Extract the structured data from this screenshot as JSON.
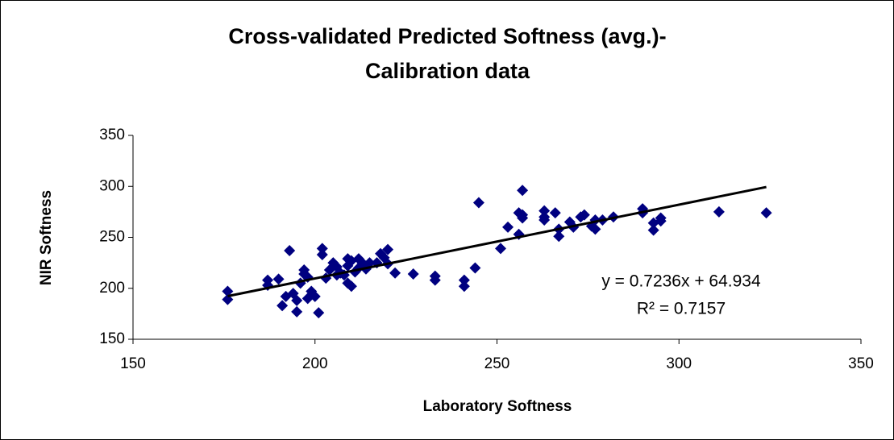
{
  "chart_data": {
    "type": "scatter",
    "title": [
      "Cross-validated Predicted Softness (avg.)-",
      "Calibration data"
    ],
    "x_label": "Laboratory Softness",
    "y_label": "NIR Softness",
    "xlim": [
      150,
      350
    ],
    "xticks": [
      150,
      200,
      250,
      300,
      350
    ],
    "ylim": [
      150,
      350
    ],
    "yticks": [
      150,
      200,
      250,
      300,
      350
    ],
    "grid": false,
    "series": [
      {
        "color": "#000080",
        "x": [
          176,
          176,
          187,
          187,
          190,
          191,
          192,
          193,
          194,
          195,
          195,
          196,
          197,
          197,
          198,
          198,
          199,
          200,
          201,
          202,
          202,
          203,
          204,
          205,
          206,
          206,
          207,
          208,
          209,
          209,
          209,
          210,
          210,
          211,
          212,
          212,
          213,
          214,
          215,
          217,
          218,
          219,
          220,
          220,
          222,
          227,
          233,
          233,
          241,
          241,
          244,
          245,
          251,
          253,
          256,
          256,
          257,
          257,
          257,
          263,
          263,
          263,
          266,
          267,
          267,
          270,
          271,
          273,
          274,
          276,
          277,
          277,
          279,
          282,
          290,
          290,
          293,
          293,
          295,
          295,
          311,
          324
        ],
        "values": [
          197,
          189,
          208,
          203,
          209,
          183,
          192,
          237,
          195,
          188,
          177,
          205,
          218,
          214,
          211,
          190,
          197,
          192,
          176,
          239,
          233,
          210,
          218,
          225,
          213,
          221,
          215,
          213,
          229,
          222,
          205,
          202,
          227,
          216,
          220,
          229,
          225,
          219,
          225,
          225,
          234,
          230,
          238,
          224,
          215,
          214,
          212,
          208,
          208,
          202,
          220,
          284,
          239,
          260,
          253,
          274,
          296,
          272,
          269,
          276,
          267,
          270,
          274,
          258,
          251,
          265,
          260,
          270,
          272,
          261,
          267,
          258,
          267,
          270,
          278,
          274,
          257,
          264,
          269,
          266,
          275,
          274
        ]
      }
    ],
    "trendline": {
      "slope": 0.7236,
      "intercept": 64.934,
      "color": "#000000",
      "equation": "y = 0.7236x + 64.934",
      "r_squared": "R² = 0.7157"
    }
  }
}
